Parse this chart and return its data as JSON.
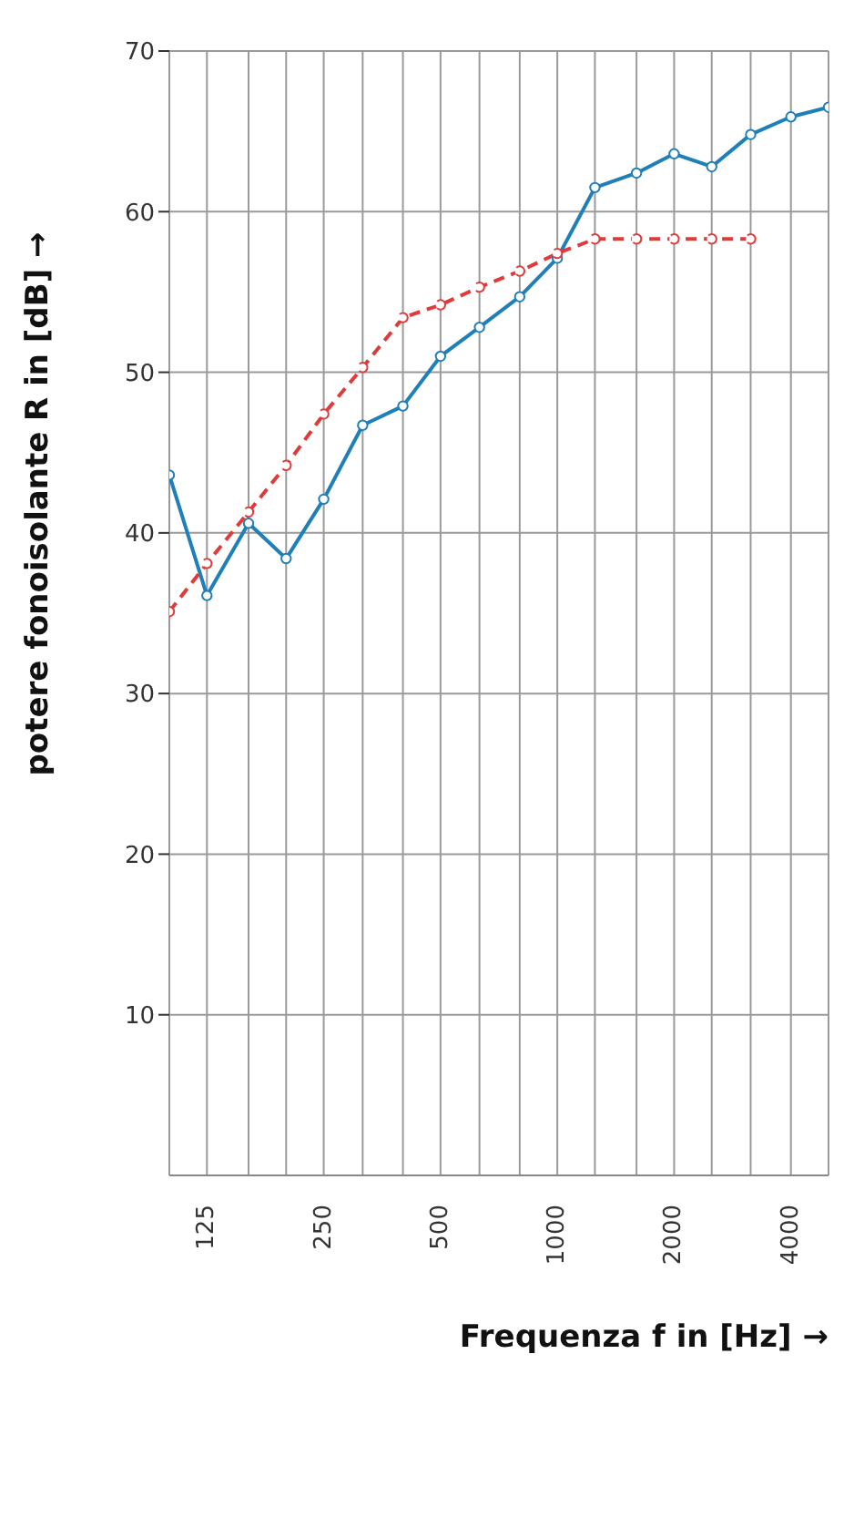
{
  "chart_data": {
    "type": "line",
    "xlabel": "Frequenza f in [Hz] →",
    "ylabel": "potere fonoisolante R in [dB] →",
    "log": "x",
    "xlim": [
      100,
      5000
    ],
    "ylim": [
      0,
      70
    ],
    "xticks": [
      {
        "value": 100,
        "label": null
      },
      125,
      {
        "value": 160,
        "label": null
      },
      {
        "value": 200,
        "label": null
      },
      250,
      {
        "value": 315,
        "label": null
      },
      {
        "value": 400,
        "label": null
      },
      500,
      {
        "value": 630,
        "label": null
      },
      {
        "value": 800,
        "label": null
      },
      1000,
      {
        "value": 1250,
        "label": null
      },
      {
        "value": 1600,
        "label": null
      },
      2000,
      {
        "value": 2500,
        "label": null
      },
      {
        "value": 3150,
        "label": null
      },
      4000,
      {
        "value": 5000,
        "label": null
      }
    ],
    "yticks": [
      10,
      20,
      30,
      40,
      50,
      60,
      70
    ],
    "grid": true,
    "marker": "circle",
    "series": [
      {
        "color": "#1f7fb8",
        "line_style": "solid",
        "x": [
          100,
          125,
          160,
          200,
          250,
          315,
          400,
          500,
          630,
          800,
          1000,
          1250,
          1600,
          2000,
          2500,
          3150,
          4000,
          5000
        ],
        "values": [
          43.6,
          36.1,
          40.6,
          38.4,
          42.1,
          46.7,
          47.9,
          51.0,
          52.8,
          54.7,
          57.1,
          61.5,
          62.4,
          63.6,
          62.8,
          64.8,
          65.9,
          66.5
        ]
      },
      {
        "color": "#e03a3a",
        "line_style": "dashed",
        "x": [
          100,
          125,
          160,
          200,
          250,
          315,
          400,
          500,
          630,
          800,
          1000,
          1250,
          1600,
          2000,
          2500,
          3150
        ],
        "values": [
          35.1,
          38.1,
          41.3,
          44.2,
          47.4,
          50.3,
          53.4,
          54.2,
          55.3,
          56.3,
          57.4,
          58.3,
          58.3,
          58.3,
          58.3,
          58.3
        ]
      }
    ]
  }
}
